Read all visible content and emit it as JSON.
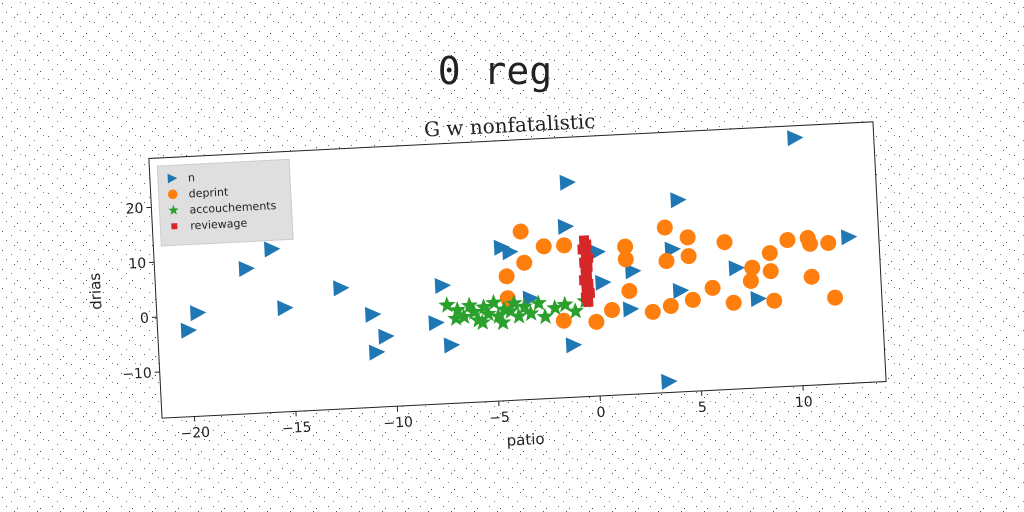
{
  "chart_data": {
    "type": "scatter",
    "suptitle": "0 reg",
    "title": "G w nonfatalistic",
    "xlabel": "patio",
    "ylabel": "drias",
    "xlim": [
      -21.6,
      14.1
    ],
    "ylim": [
      -18.4,
      28.9
    ],
    "xticks": [
      {
        "value": -20,
        "label": "−20"
      },
      {
        "value": -15,
        "label": "−15"
      },
      {
        "value": -10,
        "label": "−10"
      },
      {
        "value": -5,
        "label": "−5"
      },
      0,
      5,
      10
    ],
    "yticks": [
      {
        "value": -10,
        "label": "−10"
      },
      0,
      10,
      20
    ],
    "grid": false,
    "legend": "upper left",
    "series": [
      {
        "name": "n",
        "color": "#1f77b4",
        "marker": "triangle-right",
        "x": [
          10.2,
          -1.1,
          4.3,
          -1.3,
          12.6,
          -4.5,
          -4.1,
          -15.8,
          -17.1,
          3.9,
          1.9,
          0.4,
          7.0,
          8.0,
          4.2,
          -7.5,
          -12.5,
          -15.3,
          -19.6,
          -20.1,
          -11.0,
          -10.4,
          -10.9,
          -7.9,
          -7.2,
          -3.2,
          -1.2,
          1.7,
          3.4,
          0.2
        ],
        "y": [
          26.7,
          20.7,
          16.5,
          12.7,
          8.2,
          9.5,
          8.6,
          11.3,
          8.0,
          7.6,
          4.0,
          2.2,
          3.6,
          -2.2,
          0,
          3.1,
          3.6,
          0.5,
          0.4,
          -2.7,
          -1.5,
          -5.6,
          -8.4,
          -3.6,
          -7.8,
          0,
          -8.9,
          -2.9,
          -16.4,
          7.8
        ]
      },
      {
        "name": "deprint",
        "color": "#ff7f0e",
        "marker": "circle",
        "x": [
          -3.5,
          -2.4,
          -1.4,
          -3.4,
          -4.3,
          -4.3,
          1.6,
          1.6,
          1.7,
          0.8,
          0,
          2.8,
          3.7,
          4.8,
          5.8,
          6.8,
          3.6,
          4.7,
          3.6,
          4.7,
          6.5,
          7.8,
          7.7,
          8.7,
          8.7,
          8.8,
          9.6,
          10.6,
          10.7,
          11.6,
          10.7,
          11.8,
          -1.6
        ],
        "y": [
          12.2,
          9.3,
          9.3,
          6.5,
          4.2,
          0.2,
          8.5,
          6.2,
          0.4,
          -2.9,
          -4.9,
          -3.6,
          -2.7,
          -1.8,
          0.2,
          -2.7,
          11.6,
          9.6,
          5.5,
          6.2,
          8.4,
          3.5,
          1.1,
          6.0,
          2.7,
          -2.7,
          8.2,
          8.4,
          7.3,
          7.3,
          1.3,
          -2.7,
          -4.4
        ]
      },
      {
        "name": "accouchements",
        "color": "#2ca02c",
        "marker": "star",
        "x": [
          -7.3,
          -6.8,
          -6.5,
          -6.2,
          -6.0,
          -5.8,
          -5.5,
          -5.3,
          -5.0,
          -4.8,
          -4.5,
          -4.2,
          -4.0,
          -3.8,
          -3.5,
          -3.2,
          -2.8,
          -2.5,
          -2.0,
          -1.5,
          -1.0,
          -0.5,
          -6.9,
          -5.6,
          -4.6
        ],
        "y": [
          -0.5,
          -1.5,
          -2.8,
          -0.8,
          -2.0,
          -3.5,
          -1.2,
          -2.5,
          -0.5,
          -3.0,
          -1.8,
          -2.2,
          -0.8,
          -3.2,
          -1.5,
          -2.8,
          -1.0,
          -3.5,
          -2.0,
          -1.5,
          -2.8,
          -1.0,
          -3.0,
          -4.0,
          -4.2
        ]
      },
      {
        "name": "reviewage",
        "color": "#d62728",
        "marker": "square",
        "x": [
          -0.4,
          -0.3,
          -0.5,
          -0.35,
          -0.25,
          -0.45,
          -0.3,
          -0.4,
          -0.35,
          -0.5,
          -0.3,
          -0.4,
          -0.25,
          -0.45,
          -0.35
        ],
        "y": [
          10.0,
          9.2,
          8.4,
          7.6,
          6.8,
          6.0,
          5.2,
          4.4,
          3.6,
          2.8,
          2.0,
          1.2,
          0.4,
          -0.4,
          -1.2
        ]
      }
    ]
  }
}
